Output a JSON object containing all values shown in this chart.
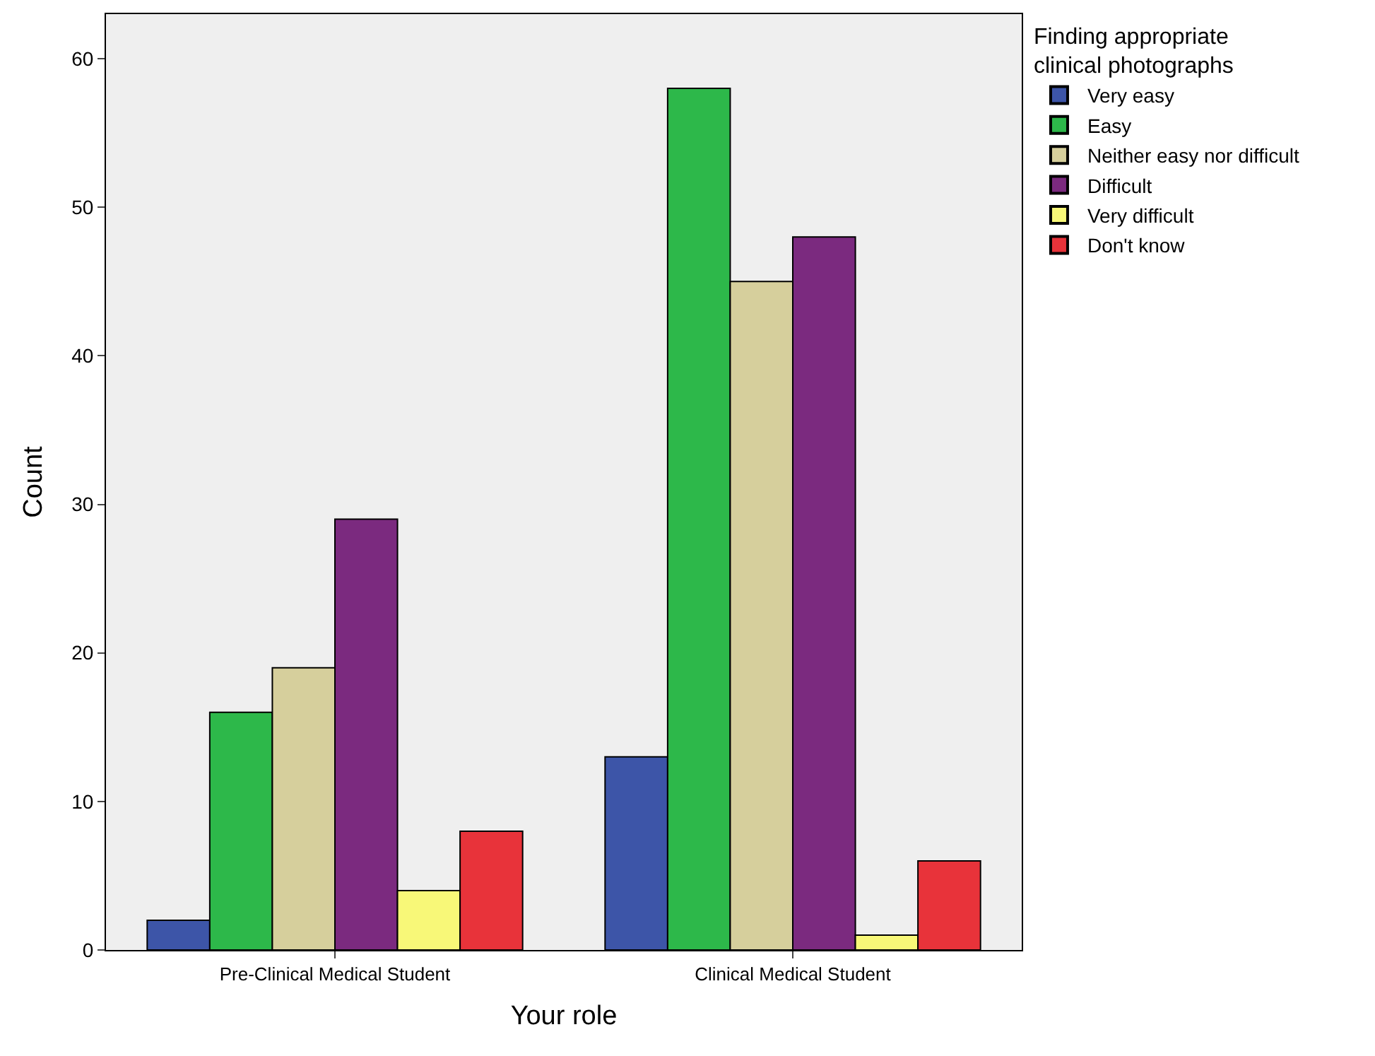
{
  "chart_data": {
    "type": "bar",
    "xlabel": "Your role",
    "ylabel": "Count",
    "legend_title": "Finding appropriate clinical photographs",
    "categories": [
      "Pre-Clinical Medical Student",
      "Clinical Medical Student"
    ],
    "series": [
      {
        "name": "Very easy",
        "color": "#3d55a8",
        "values": [
          2,
          13
        ]
      },
      {
        "name": "Easy",
        "color": "#2db84a",
        "values": [
          16,
          58
        ]
      },
      {
        "name": "Neither easy nor difficult",
        "color": "#d6cf9c",
        "values": [
          19,
          45
        ]
      },
      {
        "name": "Difficult",
        "color": "#7b2a7f",
        "values": [
          29,
          48
        ]
      },
      {
        "name": "Very difficult",
        "color": "#f8f878",
        "values": [
          4,
          1
        ]
      },
      {
        "name": "Don't know",
        "color": "#e8333a",
        "values": [
          8,
          6
        ]
      }
    ],
    "ylim": [
      0,
      63
    ],
    "yticks": [
      0,
      10,
      20,
      30,
      40,
      50,
      60
    ],
    "grid": false,
    "legend": "top right"
  }
}
